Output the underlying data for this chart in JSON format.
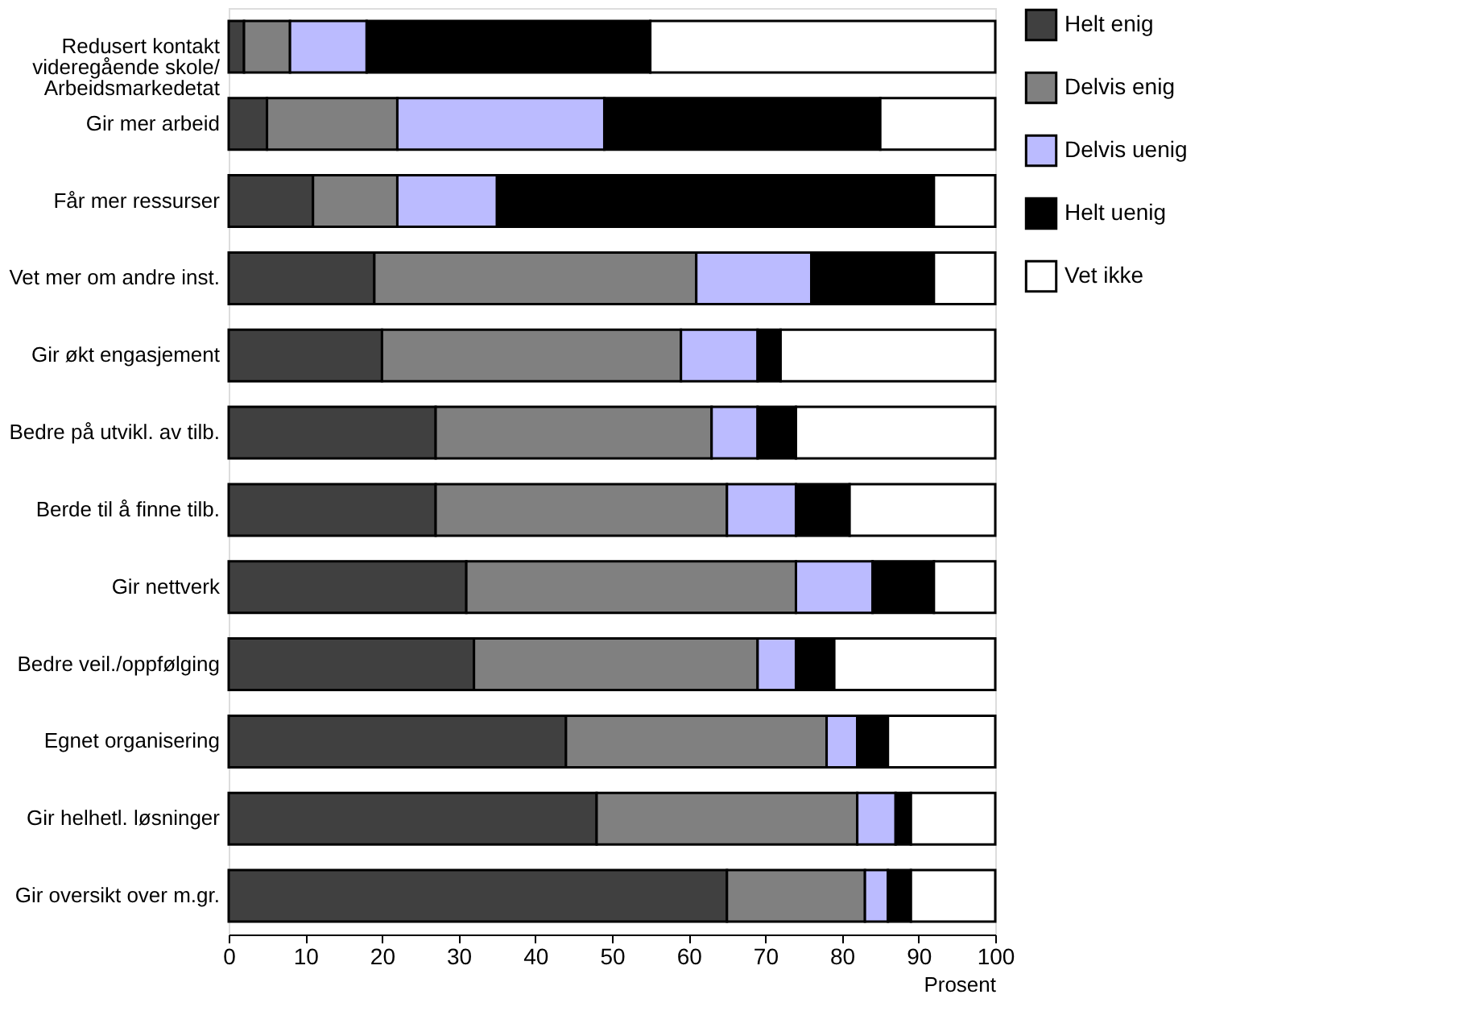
{
  "chart_data": {
    "type": "bar",
    "orientation": "horizontal",
    "stacked": true,
    "categories": [
      "Redusert kontakt\nvideregående skole/\nArbeidsmarkedetat",
      "Gir mer arbeid",
      "Får mer ressurser",
      "Vet mer om andre inst.",
      "Gir økt engasjement",
      "Bedre på utvikl. av tilb.",
      "Berde til å finne tilb.",
      "Gir nettverk",
      "Bedre veil./oppfølging",
      "Egnet organisering",
      "Gir helhetl. løsninger",
      "Gir oversikt over m.gr."
    ],
    "series": [
      {
        "name": "Helt enig",
        "color": "#404040",
        "values": [
          2,
          5,
          11,
          19,
          20,
          27,
          27,
          31,
          32,
          44,
          48,
          65
        ]
      },
      {
        "name": "Delvis enig",
        "color": "#808080",
        "values": [
          6,
          17,
          11,
          42,
          39,
          36,
          38,
          43,
          37,
          34,
          34,
          18
        ]
      },
      {
        "name": "Delvis uenig",
        "color": "#bbbbff",
        "values": [
          10,
          27,
          13,
          15,
          10,
          6,
          9,
          10,
          5,
          4,
          5,
          3
        ]
      },
      {
        "name": "Helt uenig",
        "color": "#000000",
        "values": [
          37,
          36,
          57,
          16,
          3,
          5,
          7,
          8,
          5,
          4,
          2,
          3
        ]
      },
      {
        "name": "Vet ikke",
        "color": "#ffffff",
        "values": [
          45,
          15,
          8,
          8,
          28,
          26,
          19,
          8,
          21,
          14,
          11,
          11
        ]
      }
    ],
    "xlabel": "Prosent",
    "xlim": [
      0,
      100
    ],
    "xticks": [
      0,
      10,
      20,
      30,
      40,
      50,
      60,
      70,
      80,
      90,
      100
    ],
    "grid": false,
    "legend": "top right"
  }
}
